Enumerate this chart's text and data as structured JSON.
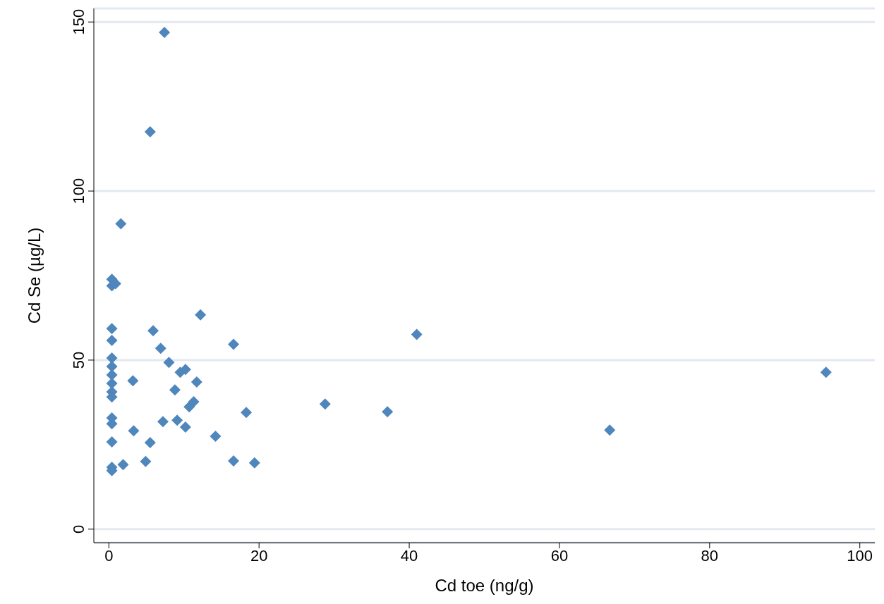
{
  "chart_data": {
    "type": "scatter",
    "xlabel": "Cd toe (ng/g)",
    "ylabel": "Cd Se (µg/L)",
    "marker": "diamond",
    "grid": "y",
    "xlim": [
      -2,
      102
    ],
    "xticks": [
      0,
      20,
      40,
      60,
      80,
      100
    ],
    "ylim": [
      -4,
      154
    ],
    "yticks": [
      0,
      50,
      100,
      150
    ],
    "series": [
      {
        "color": "#4f86bc",
        "x": [
          7.4,
          5.5,
          1.6,
          0.4,
          0.4,
          0.9,
          0.4,
          0.4,
          0.4,
          0.4,
          0.4,
          0.4,
          0.4,
          0.4,
          0.4,
          0.4,
          0.4,
          0.4,
          0.4,
          1.9,
          3.2,
          3.3,
          4.9,
          5.5,
          5.9,
          6.9,
          7.2,
          8.0,
          8.8,
          9.1,
          9.5,
          10.2,
          10.2,
          10.7,
          11.3,
          11.7,
          12.2,
          14.2,
          16.6,
          16.6,
          18.3,
          19.4,
          28.8,
          37.1,
          41.0,
          66.7,
          95.5
        ],
        "values": [
          146.9,
          117.5,
          90.3,
          73.9,
          72.0,
          72.6,
          59.3,
          55.8,
          50.6,
          48.1,
          45.6,
          43.1,
          40.6,
          39.1,
          32.9,
          31.2,
          25.8,
          18.3,
          17.3,
          19.1,
          43.9,
          29.1,
          20.0,
          25.6,
          58.7,
          53.5,
          31.8,
          49.3,
          41.2,
          32.2,
          46.4,
          47.2,
          30.2,
          36.2,
          37.7,
          43.5,
          63.4,
          27.5,
          54.7,
          20.2,
          34.5,
          19.6,
          37.0,
          34.7,
          57.6,
          29.3,
          46.4
        ]
      }
    ]
  }
}
